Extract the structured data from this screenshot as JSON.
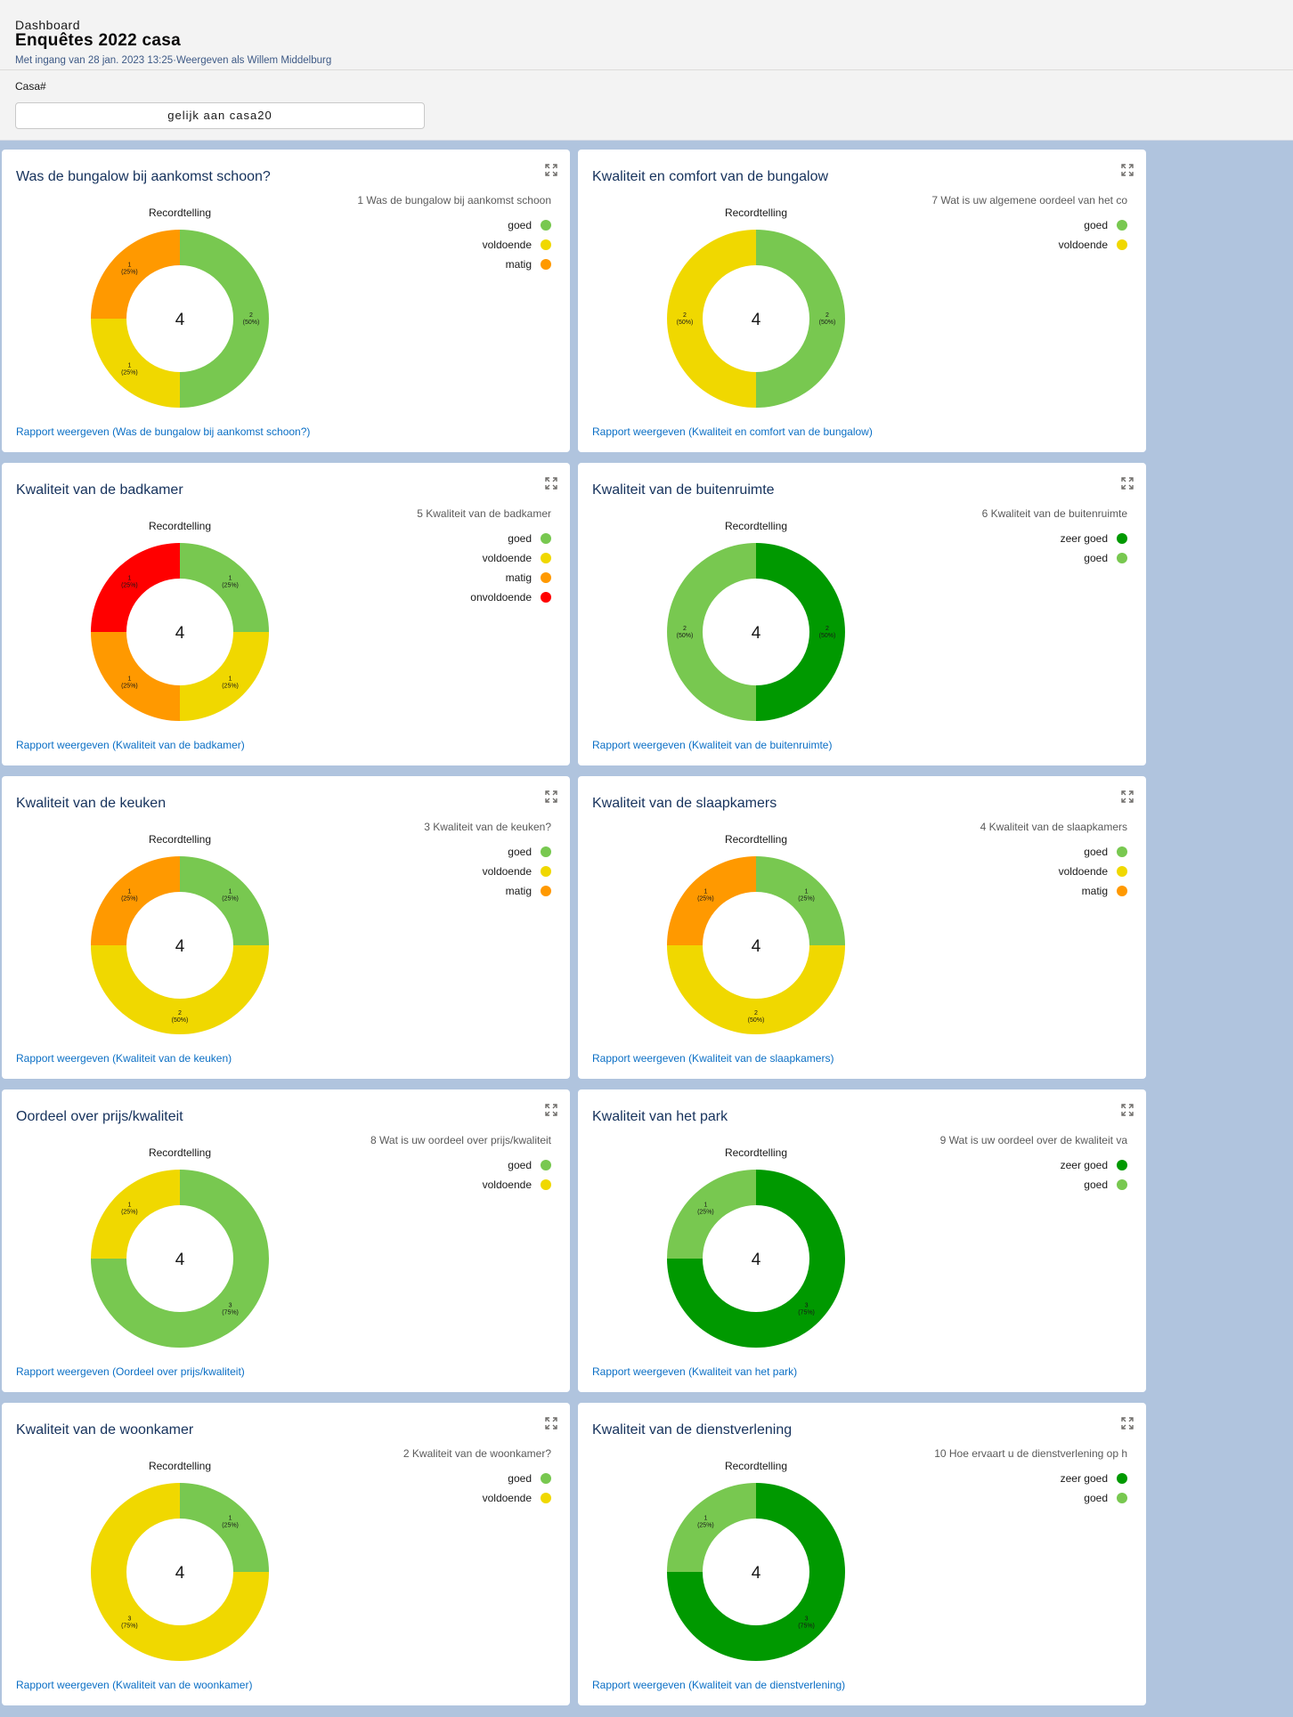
{
  "header": {
    "kicker": "Dashboard",
    "title": "Enquêtes 2022 casa",
    "subtitle": "Met ingang van 28 jan. 2023 13:25·Weergeven als Willem Middelburg",
    "filter_label": "Casa#",
    "filter_value": "gelijk aan casa20"
  },
  "colors": {
    "zeer goed": "#009900",
    "goed": "#78c850",
    "voldoende": "#f0d800",
    "matig": "#ff9900",
    "onvoldoende": "#ff0000"
  },
  "cards": [
    {
      "title": "Was de bungalow bij aankomst schoon?",
      "report": "Rapport weergeven (Was de bungalow bij aankomst schoon?)"
    },
    {
      "title": "Kwaliteit en comfort van de bungalow",
      "report": "Rapport weergeven (Kwaliteit en comfort van de bungalow)"
    },
    {
      "title": "Kwaliteit van de badkamer",
      "report": "Rapport weergeven (Kwaliteit van de badkamer)"
    },
    {
      "title": "Kwaliteit van de buitenruimte",
      "report": "Rapport weergeven (Kwaliteit van de buitenruimte)"
    },
    {
      "title": "Kwaliteit van de keuken",
      "report": "Rapport weergeven (Kwaliteit van de keuken)"
    },
    {
      "title": "Kwaliteit van de slaapkamers",
      "report": "Rapport weergeven (Kwaliteit van de slaapkamers)"
    },
    {
      "title": "Oordeel over prijs/kwaliteit",
      "report": "Rapport weergeven (Oordeel over prijs/kwaliteit)"
    },
    {
      "title": "Kwaliteit van het park",
      "report": "Rapport weergeven (Kwaliteit van het park)"
    },
    {
      "title": "Kwaliteit van de woonkamer",
      "report": "Rapport weergeven (Kwaliteit van de woonkamer)"
    },
    {
      "title": "Kwaliteit van de dienstverlening",
      "report": "Rapport weergeven (Kwaliteit van de dienstverlening)"
    }
  ],
  "chart_data": [
    {
      "type": "pie",
      "donut": true,
      "title": "Recordtelling",
      "legend_title": "1 Was de bungalow bij aankomst schoon",
      "total": "4",
      "categories": [
        "goed",
        "voldoende",
        "matig"
      ],
      "values": [
        2,
        1,
        1
      ],
      "labels": [
        "2 (50%)",
        "1 (25%)",
        "1 (25%)"
      ],
      "legend_position": "top-right"
    },
    {
      "type": "pie",
      "donut": true,
      "title": "Recordtelling",
      "legend_title": "7 Wat is uw  algemene oordeel van het co",
      "total": "4",
      "categories": [
        "goed",
        "voldoende"
      ],
      "values": [
        2,
        2
      ],
      "labels": [
        "2 (50%)",
        "2 (50%)"
      ],
      "legend_position": "top-right"
    },
    {
      "type": "pie",
      "donut": true,
      "title": "Recordtelling",
      "legend_title": "5 Kwaliteit van de badkamer",
      "total": "4",
      "categories": [
        "goed",
        "voldoende",
        "matig",
        "onvoldoende"
      ],
      "values": [
        1,
        1,
        1,
        1
      ],
      "labels": [
        "1 (25%)",
        "1 (25%)",
        "1 (25%)",
        "1 (25%)"
      ],
      "legend_position": "top-right"
    },
    {
      "type": "pie",
      "donut": true,
      "title": "Recordtelling",
      "legend_title": "6 Kwaliteit van de buitenruimte",
      "total": "4",
      "categories": [
        "zeer goed",
        "goed"
      ],
      "values": [
        2,
        2
      ],
      "labels": [
        "2 (50%)",
        "2 (50%)"
      ],
      "legend_position": "top-right"
    },
    {
      "type": "pie",
      "donut": true,
      "title": "Recordtelling",
      "legend_title": "3 Kwaliteit van de keuken?",
      "total": "4",
      "categories": [
        "goed",
        "voldoende",
        "matig"
      ],
      "values": [
        1,
        2,
        1
      ],
      "labels": [
        "1 (25%)",
        "2 (50%)",
        "1 (25%)"
      ],
      "legend_position": "top-right"
    },
    {
      "type": "pie",
      "donut": true,
      "title": "Recordtelling",
      "legend_title": "4 Kwaliteit van de slaapkamers",
      "total": "4",
      "categories": [
        "goed",
        "voldoende",
        "matig"
      ],
      "values": [
        1,
        2,
        1
      ],
      "labels": [
        "1 (25%)",
        "2 (50%)",
        "1 (25%)"
      ],
      "legend_position": "top-right"
    },
    {
      "type": "pie",
      "donut": true,
      "title": "Recordtelling",
      "legend_title": "8 Wat is uw oordeel over prijs/kwaliteit",
      "total": "4",
      "categories": [
        "goed",
        "voldoende"
      ],
      "values": [
        3,
        1
      ],
      "labels": [
        "3 (75%)",
        "1 (25%)"
      ],
      "legend_position": "top-right"
    },
    {
      "type": "pie",
      "donut": true,
      "title": "Recordtelling",
      "legend_title": "9 Wat is uw oordeel over de kwaliteit va",
      "total": "4",
      "categories": [
        "zeer goed",
        "goed"
      ],
      "values": [
        3,
        1
      ],
      "labels": [
        "3 (75%)",
        "1 (25%)"
      ],
      "legend_position": "top-right"
    },
    {
      "type": "pie",
      "donut": true,
      "title": "Recordtelling",
      "legend_title": "2 Kwaliteit van de woonkamer?",
      "total": "4",
      "categories": [
        "goed",
        "voldoende"
      ],
      "values": [
        1,
        3
      ],
      "labels": [
        "1 (25%)",
        "3 (75%)"
      ],
      "legend_position": "top-right"
    },
    {
      "type": "pie",
      "donut": true,
      "title": "Recordtelling",
      "legend_title": "10 Hoe ervaart u de dienstverlening op h",
      "total": "4",
      "categories": [
        "zeer goed",
        "goed"
      ],
      "values": [
        3,
        1
      ],
      "labels": [
        "3 (75%)",
        "1 (25%)"
      ],
      "legend_position": "top-right"
    }
  ]
}
